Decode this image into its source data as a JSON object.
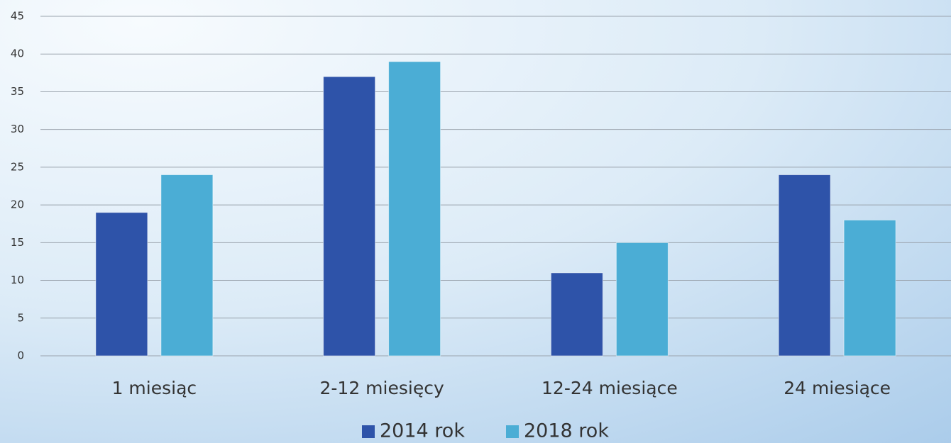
{
  "chart_data": {
    "type": "bar",
    "categories": [
      "1 miesiąc",
      "2-12 miesięcy",
      "12-24 miesiące",
      "24 miesiące"
    ],
    "series": [
      {
        "name": "2014 rok",
        "color": "#2e53a9",
        "values": [
          19,
          37,
          11,
          24
        ]
      },
      {
        "name": "2018 rok",
        "color": "#4badd5",
        "values": [
          24,
          39,
          15,
          18
        ]
      }
    ],
    "ylim": [
      0,
      45
    ],
    "yticks": [
      0,
      5,
      10,
      15,
      20,
      25,
      30,
      35,
      40,
      45
    ],
    "grid": true
  }
}
